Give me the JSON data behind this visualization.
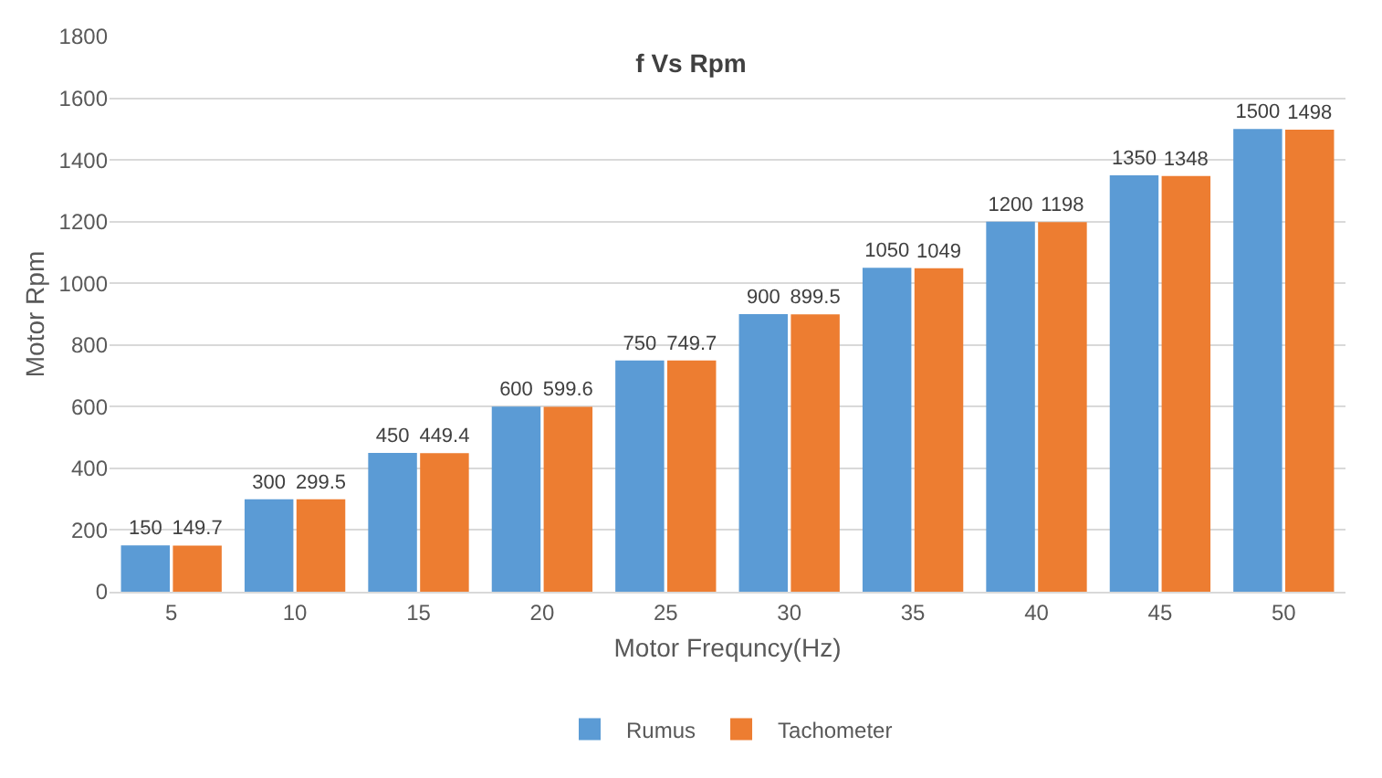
{
  "chart_data": {
    "type": "bar",
    "title": "f Vs Rpm",
    "xlabel": "Motor Frequncy(Hz)",
    "ylabel": "Motor Rpm",
    "categories": [
      "5",
      "10",
      "15",
      "20",
      "25",
      "30",
      "35",
      "40",
      "45",
      "50"
    ],
    "series": [
      {
        "name": "Rumus",
        "color": "#5b9bd5",
        "values": [
          150,
          300,
          450,
          600,
          750,
          900,
          1050,
          1200,
          1350,
          1500
        ]
      },
      {
        "name": "Tachometer",
        "color": "#ed7d31",
        "values": [
          149.7,
          299.5,
          449.4,
          599.6,
          749.7,
          899.5,
          1049,
          1198,
          1348,
          1498
        ]
      }
    ],
    "ylim": [
      0,
      1800
    ],
    "yticks": [
      0,
      200,
      400,
      600,
      800,
      1000,
      1200,
      1400,
      1600,
      1800
    ],
    "grid": "y",
    "legend": "bottom",
    "data_labels": true
  }
}
